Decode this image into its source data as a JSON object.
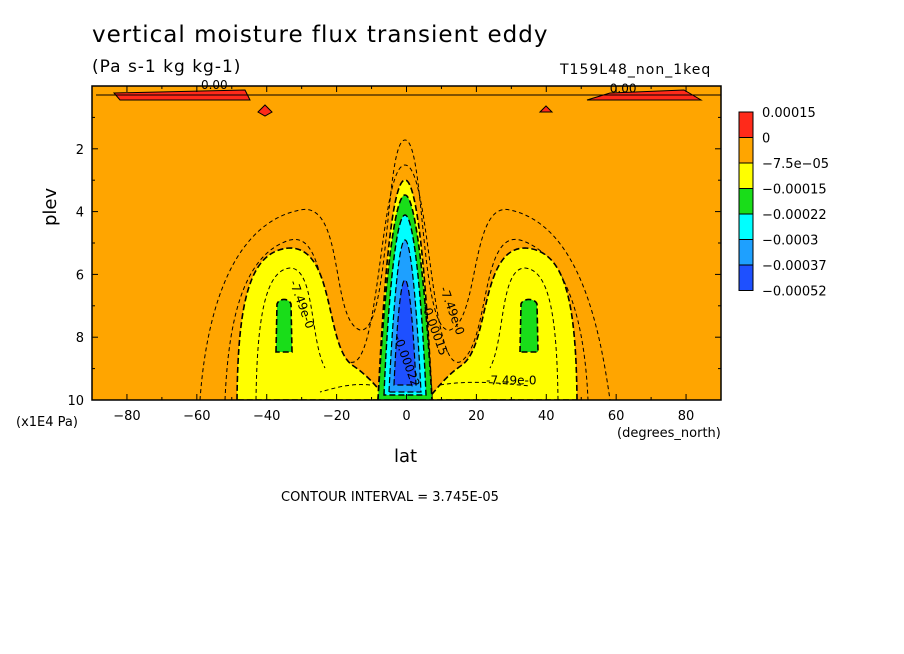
{
  "chart_data": {
    "type": "heatmap",
    "title": "vertical moisture flux transient eddy",
    "subtitle": "(Pa s-1 kg kg-1)",
    "run_label": "T159L48_non_1keq",
    "xlabel": "lat",
    "x_units_note": "(degrees_north)",
    "ylabel": "plev",
    "y_units_note": "(x1E4 Pa)",
    "contour_interval_text": "CONTOUR INTERVAL = 3.745E-05",
    "xlim": [
      -90,
      90
    ],
    "ylim": [
      10,
      0
    ],
    "x_ticks": [
      -80,
      -60,
      -40,
      -20,
      0,
      20,
      40,
      60,
      80
    ],
    "y_ticks": [
      2,
      4,
      6,
      8,
      10
    ],
    "colorbar": {
      "labels": [
        "0.00015",
        "0",
        "−7.5e−05",
        "−0.00015",
        "−0.00022",
        "−0.0003",
        "−0.00037",
        "−0.00052"
      ],
      "colors": [
        "#ff2a1a",
        "#ffa500",
        "#ffff00",
        "#19dd19",
        "#00ffff",
        "#1ea0ff",
        "#1e50ff"
      ]
    },
    "contour_labels": [
      {
        "text": "0.00",
        "lat": -55,
        "plev": 0.1
      },
      {
        "text": "0.00",
        "lat": 62,
        "plev": 0.2
      },
      {
        "text": "-7.49e-0",
        "lat": -31,
        "plev": 7.0
      },
      {
        "text": "-7.49e-0",
        "lat": 12,
        "plev": 7.2
      },
      {
        "text": "-0.00015",
        "lat": 7,
        "plev": 7.8
      },
      {
        "text": "-0.00022",
        "lat": -1,
        "plev": 8.8
      },
      {
        "text": "-7.49e-0",
        "lat": 30,
        "plev": 9.5
      }
    ],
    "features": [
      {
        "region": "near-surface tropics",
        "lat": [
          -8,
          8
        ],
        "plev": [
          3.5,
          10
        ],
        "min_value": -0.00052
      },
      {
        "region": "southern midlatitudes",
        "lat": [
          -50,
          -20
        ],
        "plev": [
          5,
          10
        ],
        "min_value": -0.00022
      },
      {
        "region": "northern midlatitudes",
        "lat": [
          20,
          50
        ],
        "plev": [
          5,
          10
        ],
        "min_value": -0.00022
      },
      {
        "region": "top level",
        "lat": [
          -90,
          90
        ],
        "plev": [
          0,
          0.5
        ],
        "max_value": 0.00015
      }
    ]
  }
}
